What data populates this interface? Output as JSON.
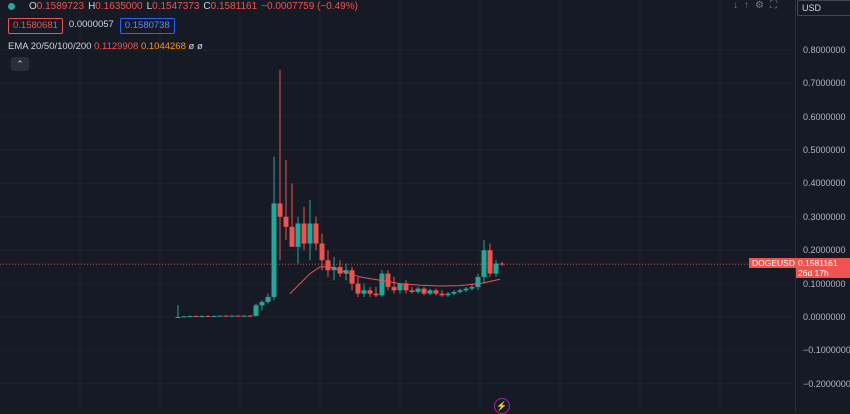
{
  "ohlc": {
    "open_label": "O",
    "open": "0.1589723",
    "high_label": "H",
    "high": "0.1635000",
    "low_label": "L",
    "low": "0.1547373",
    "close_label": "C",
    "close": "0.1581161",
    "change": "−0.0007759 (−0.49%)"
  },
  "quote": {
    "sell": "0.1580681",
    "spread": "0.0000057",
    "buy": "0.1580738"
  },
  "ema": {
    "label": "EMA 20/50/100/200",
    "v20": "0.1129908",
    "v50": "0.1044268",
    "v100": "ø",
    "v200": "ø"
  },
  "currency": "USD",
  "symbol": "DOGEUSD",
  "last_price": "0.1581161",
  "countdown": "26d 17h",
  "price_ticks": [
    "0.8000000",
    "0.7000000",
    "0.6000000",
    "0.5000000",
    "0.4000000",
    "0.3000000",
    "0.2000000",
    "0.1000000",
    "0.0000000",
    "−0.1000000",
    "−0.2000000"
  ],
  "colors": {
    "up": "#26a69a",
    "down": "#ef5350",
    "ema20": "#ef5350",
    "ema50": "#ff9800",
    "background": "#161a25"
  },
  "icons": [
    "download-arrow-icon",
    "up-arrow-icon",
    "settings-icon",
    "fullscreen-icon",
    "camera-icon",
    "lightning-icon"
  ]
}
